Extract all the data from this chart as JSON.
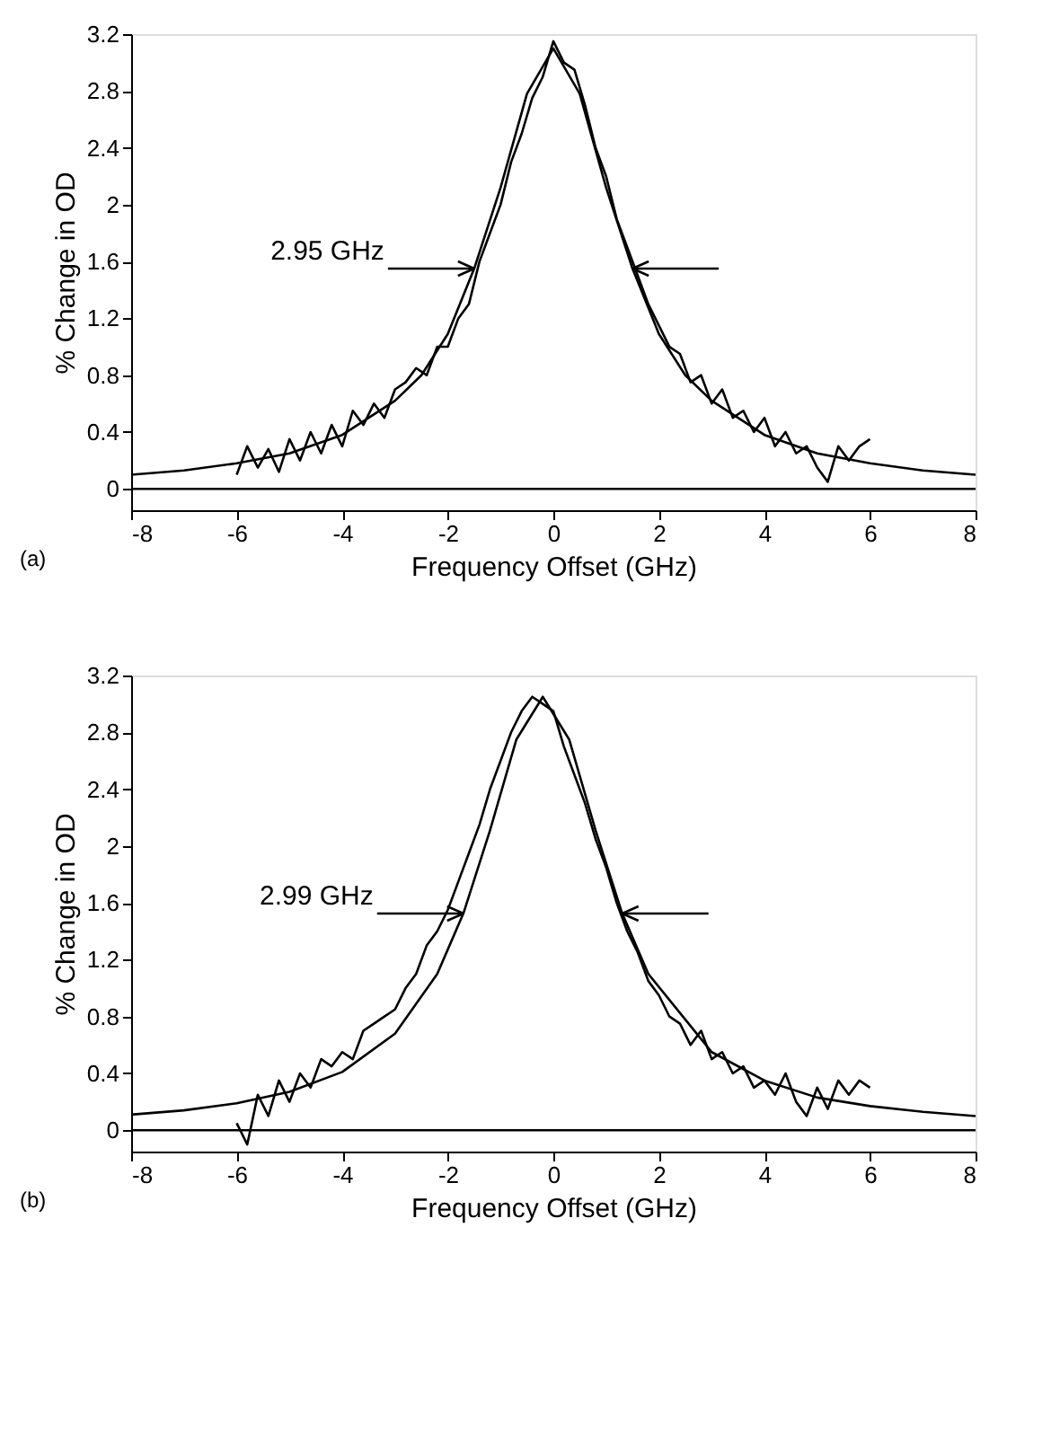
{
  "chart_data": [
    {
      "type": "line",
      "xlabel": "Frequency Offset (GHz)",
      "ylabel": "% Change in OD",
      "xlim": [
        -8,
        8
      ],
      "ylim": [
        -0.15,
        3.2
      ],
      "xticks": [
        -8,
        -6,
        -4,
        -2,
        0,
        2,
        4,
        6,
        8
      ],
      "yticks": [
        {
          "value": 0,
          "label": "0"
        },
        0.4,
        0.8,
        1.2,
        1.6,
        2,
        2.4,
        2.8,
        3.2
      ],
      "grid": false,
      "marker": "none",
      "line_style": "solid",
      "series": [
        {
          "color": "#000000",
          "x": [
            -6.0,
            -5.8,
            -5.6,
            -5.4,
            -5.2,
            -5.0,
            -4.8,
            -4.6,
            -4.4,
            -4.2,
            -4.0,
            -3.8,
            -3.6,
            -3.4,
            -3.2,
            -3.0,
            -2.8,
            -2.6,
            -2.4,
            -2.2,
            -2.0,
            -1.8,
            -1.6,
            -1.4,
            -1.2,
            -1.0,
            -0.8,
            -0.6,
            -0.4,
            -0.2,
            0.0,
            0.2,
            0.4,
            0.6,
            0.8,
            1.0,
            1.2,
            1.4,
            1.6,
            1.8,
            2.0,
            2.2,
            2.4,
            2.6,
            2.8,
            3.0,
            3.2,
            3.4,
            3.6,
            3.8,
            4.0,
            4.2,
            4.4,
            4.6,
            4.8,
            5.0,
            5.2,
            5.4,
            5.6,
            5.8,
            6.0
          ],
          "values": [
            0.1,
            0.3,
            0.15,
            0.28,
            0.12,
            0.35,
            0.2,
            0.4,
            0.25,
            0.45,
            0.3,
            0.55,
            0.45,
            0.6,
            0.5,
            0.7,
            0.75,
            0.85,
            0.8,
            1.0,
            1.0,
            1.2,
            1.3,
            1.6,
            1.8,
            2.0,
            2.3,
            2.5,
            2.75,
            2.9,
            3.15,
            3.0,
            2.95,
            2.7,
            2.4,
            2.2,
            1.9,
            1.7,
            1.5,
            1.3,
            1.15,
            1.0,
            0.95,
            0.75,
            0.8,
            0.6,
            0.7,
            0.5,
            0.55,
            0.4,
            0.5,
            0.3,
            0.4,
            0.25,
            0.3,
            0.15,
            0.05,
            0.3,
            0.2,
            0.3,
            0.35
          ]
        },
        {
          "color": "#000000",
          "x": [
            -8,
            -7,
            -6,
            -5,
            -4,
            -3,
            -2.5,
            -2,
            -1.5,
            -1,
            -0.5,
            0,
            0.5,
            1,
            1.5,
            2,
            2.5,
            3,
            4,
            5,
            6,
            7,
            8
          ],
          "values": [
            0.1,
            0.13,
            0.18,
            0.25,
            0.38,
            0.62,
            0.8,
            1.09,
            1.55,
            2.12,
            2.78,
            3.1,
            2.78,
            2.12,
            1.55,
            1.09,
            0.8,
            0.62,
            0.38,
            0.25,
            0.18,
            0.13,
            0.1
          ]
        }
      ],
      "ref_lines": [
        {
          "axis": "y",
          "value": 0
        }
      ],
      "annotations": [
        "2.95 GHz",
        "(a)"
      ]
    },
    {
      "type": "line",
      "xlabel": "Frequency Offset (GHz)",
      "ylabel": "% Change in OD",
      "xlim": [
        -8,
        8
      ],
      "ylim": [
        -0.15,
        3.2
      ],
      "xticks": [
        -8,
        -6,
        -4,
        -2,
        0,
        2,
        4,
        6,
        8
      ],
      "yticks": [
        {
          "value": 0,
          "label": "0"
        },
        0.4,
        0.8,
        1.2,
        1.6,
        2,
        2.4,
        2.8,
        3.2
      ],
      "grid": false,
      "marker": "none",
      "line_style": "solid",
      "series": [
        {
          "color": "#000000",
          "x": [
            -6.0,
            -5.8,
            -5.6,
            -5.4,
            -5.2,
            -5.0,
            -4.8,
            -4.6,
            -4.4,
            -4.2,
            -4.0,
            -3.8,
            -3.6,
            -3.4,
            -3.2,
            -3.0,
            -2.8,
            -2.6,
            -2.4,
            -2.2,
            -2.0,
            -1.8,
            -1.6,
            -1.4,
            -1.2,
            -1.0,
            -0.8,
            -0.6,
            -0.4,
            -0.2,
            0.0,
            0.2,
            0.4,
            0.6,
            0.8,
            1.0,
            1.2,
            1.4,
            1.6,
            1.8,
            2.0,
            2.2,
            2.4,
            2.6,
            2.8,
            3.0,
            3.2,
            3.4,
            3.6,
            3.8,
            4.0,
            4.2,
            4.4,
            4.6,
            4.8,
            5.0,
            5.2,
            5.4,
            5.6,
            5.8,
            6.0
          ],
          "values": [
            0.05,
            -0.1,
            0.25,
            0.1,
            0.35,
            0.2,
            0.4,
            0.3,
            0.5,
            0.45,
            0.55,
            0.5,
            0.7,
            0.75,
            0.8,
            0.85,
            1.0,
            1.1,
            1.3,
            1.4,
            1.55,
            1.75,
            1.95,
            2.15,
            2.4,
            2.6,
            2.8,
            2.95,
            3.05,
            3.0,
            2.95,
            2.7,
            2.5,
            2.3,
            2.05,
            1.85,
            1.6,
            1.4,
            1.25,
            1.05,
            0.95,
            0.8,
            0.75,
            0.6,
            0.7,
            0.5,
            0.55,
            0.4,
            0.45,
            0.3,
            0.35,
            0.25,
            0.4,
            0.2,
            0.1,
            0.3,
            0.15,
            0.35,
            0.25,
            0.35,
            0.3
          ]
        },
        {
          "color": "#000000",
          "x": [
            -8,
            -7,
            -6,
            -5,
            -4,
            -3,
            -2.2,
            -1.7,
            -1.2,
            -0.7,
            -0.2,
            0.3,
            0.8,
            1.3,
            1.8,
            3,
            4,
            5,
            6,
            7,
            8
          ],
          "values": [
            0.11,
            0.14,
            0.19,
            0.27,
            0.41,
            0.68,
            1.1,
            1.53,
            2.11,
            2.75,
            3.05,
            2.75,
            2.11,
            1.53,
            1.1,
            0.55,
            0.35,
            0.23,
            0.17,
            0.13,
            0.1
          ]
        }
      ],
      "ref_lines": [
        {
          "axis": "y",
          "value": 0
        }
      ],
      "annotations": [
        "2.99 GHz",
        "(b)"
      ]
    }
  ]
}
